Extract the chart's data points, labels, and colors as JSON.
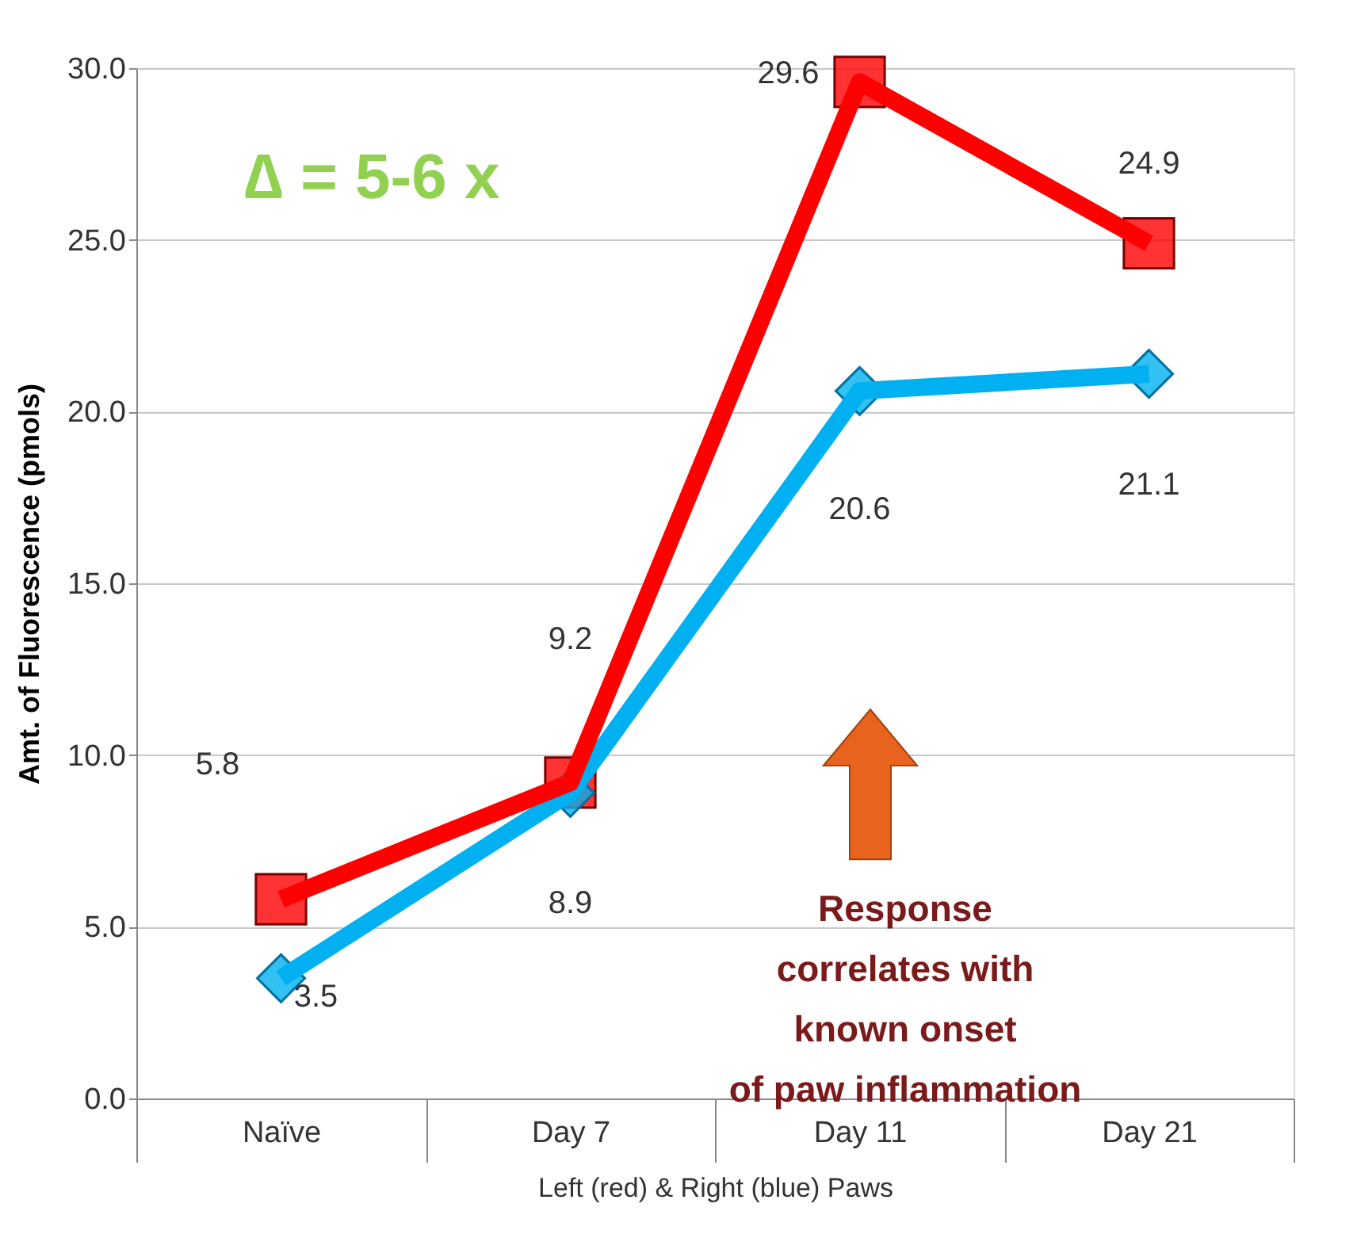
{
  "chart_data": {
    "type": "line",
    "ylabel": "Amt. of Fluorescence (pmols)",
    "xlabel": "Left (red) & Right (blue) Paws",
    "categories": [
      "Naïve",
      "Day 7",
      "Day 11",
      "Day 21"
    ],
    "series": [
      {
        "color": "#ff0000",
        "values": [
          5.8,
          9.2,
          29.6,
          24.9
        ],
        "marker": "square"
      },
      {
        "color": "#00b0f0",
        "values": [
          3.5,
          8.9,
          20.6,
          21.1
        ],
        "marker": "diamond"
      }
    ],
    "ylim": [
      0,
      30
    ],
    "yticks": [
      {
        "value": 0,
        "label": "0.0"
      },
      {
        "value": 5,
        "label": "5.0"
      },
      {
        "value": 10,
        "label": "10.0"
      },
      {
        "value": 15,
        "label": "15.0"
      },
      {
        "value": 20,
        "label": "20.0"
      },
      {
        "value": 25,
        "label": "25.0"
      },
      {
        "value": 30,
        "label": "30.0"
      }
    ],
    "grid": "y",
    "data_labels": true,
    "line_style": "solid",
    "annotations": [
      "∆ = 5-6 x",
      "Response correlates with known onset of paw inflammation"
    ]
  }
}
